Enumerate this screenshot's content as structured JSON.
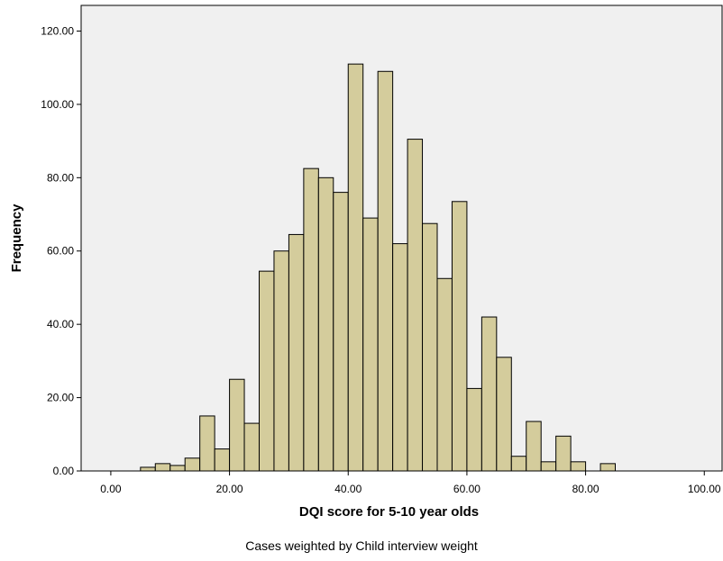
{
  "chart_data": {
    "type": "bar",
    "xlabel": "DQI score for 5-10 year olds",
    "ylabel": "Frequency",
    "note": "Cases weighted by Child interview weight",
    "xlim": [
      -5,
      103
    ],
    "ylim": [
      0,
      127
    ],
    "bin_width": 2.5,
    "x_ticks": [
      0,
      20,
      40,
      60,
      80,
      100
    ],
    "x_tick_labels": [
      "0.00",
      "20.00",
      "40.00",
      "60.00",
      "80.00",
      "100.00"
    ],
    "y_ticks": [
      0,
      20,
      40,
      60,
      80,
      100,
      120
    ],
    "y_tick_labels": [
      "0.00",
      "20.00",
      "40.00",
      "60.00",
      "80.00",
      "100.00",
      "120.00"
    ],
    "grid": false,
    "colors": {
      "bar_fill": "#d4cc9c",
      "bar_stroke": "#000000",
      "plot_bg": "#f0f0f0"
    },
    "bins": [
      {
        "x": 5.0,
        "value": 1
      },
      {
        "x": 7.5,
        "value": 2
      },
      {
        "x": 10.0,
        "value": 1.5
      },
      {
        "x": 12.5,
        "value": 3.5
      },
      {
        "x": 15.0,
        "value": 15
      },
      {
        "x": 17.5,
        "value": 6
      },
      {
        "x": 20.0,
        "value": 25
      },
      {
        "x": 22.5,
        "value": 13
      },
      {
        "x": 25.0,
        "value": 54.5
      },
      {
        "x": 27.5,
        "value": 60
      },
      {
        "x": 30.0,
        "value": 64.5
      },
      {
        "x": 32.5,
        "value": 82.5
      },
      {
        "x": 35.0,
        "value": 80
      },
      {
        "x": 37.5,
        "value": 76
      },
      {
        "x": 40.0,
        "value": 111
      },
      {
        "x": 42.5,
        "value": 69
      },
      {
        "x": 45.0,
        "value": 109
      },
      {
        "x": 47.5,
        "value": 62
      },
      {
        "x": 50.0,
        "value": 90.5
      },
      {
        "x": 52.5,
        "value": 67.5
      },
      {
        "x": 55.0,
        "value": 52.5
      },
      {
        "x": 57.5,
        "value": 73.5
      },
      {
        "x": 60.0,
        "value": 22.5
      },
      {
        "x": 62.5,
        "value": 42
      },
      {
        "x": 65.0,
        "value": 31
      },
      {
        "x": 67.5,
        "value": 4
      },
      {
        "x": 70.0,
        "value": 13.5
      },
      {
        "x": 72.5,
        "value": 2.5
      },
      {
        "x": 75.0,
        "value": 9.5
      },
      {
        "x": 77.5,
        "value": 2.5
      },
      {
        "x": 80.0,
        "value": 0
      },
      {
        "x": 82.5,
        "value": 2
      }
    ]
  }
}
